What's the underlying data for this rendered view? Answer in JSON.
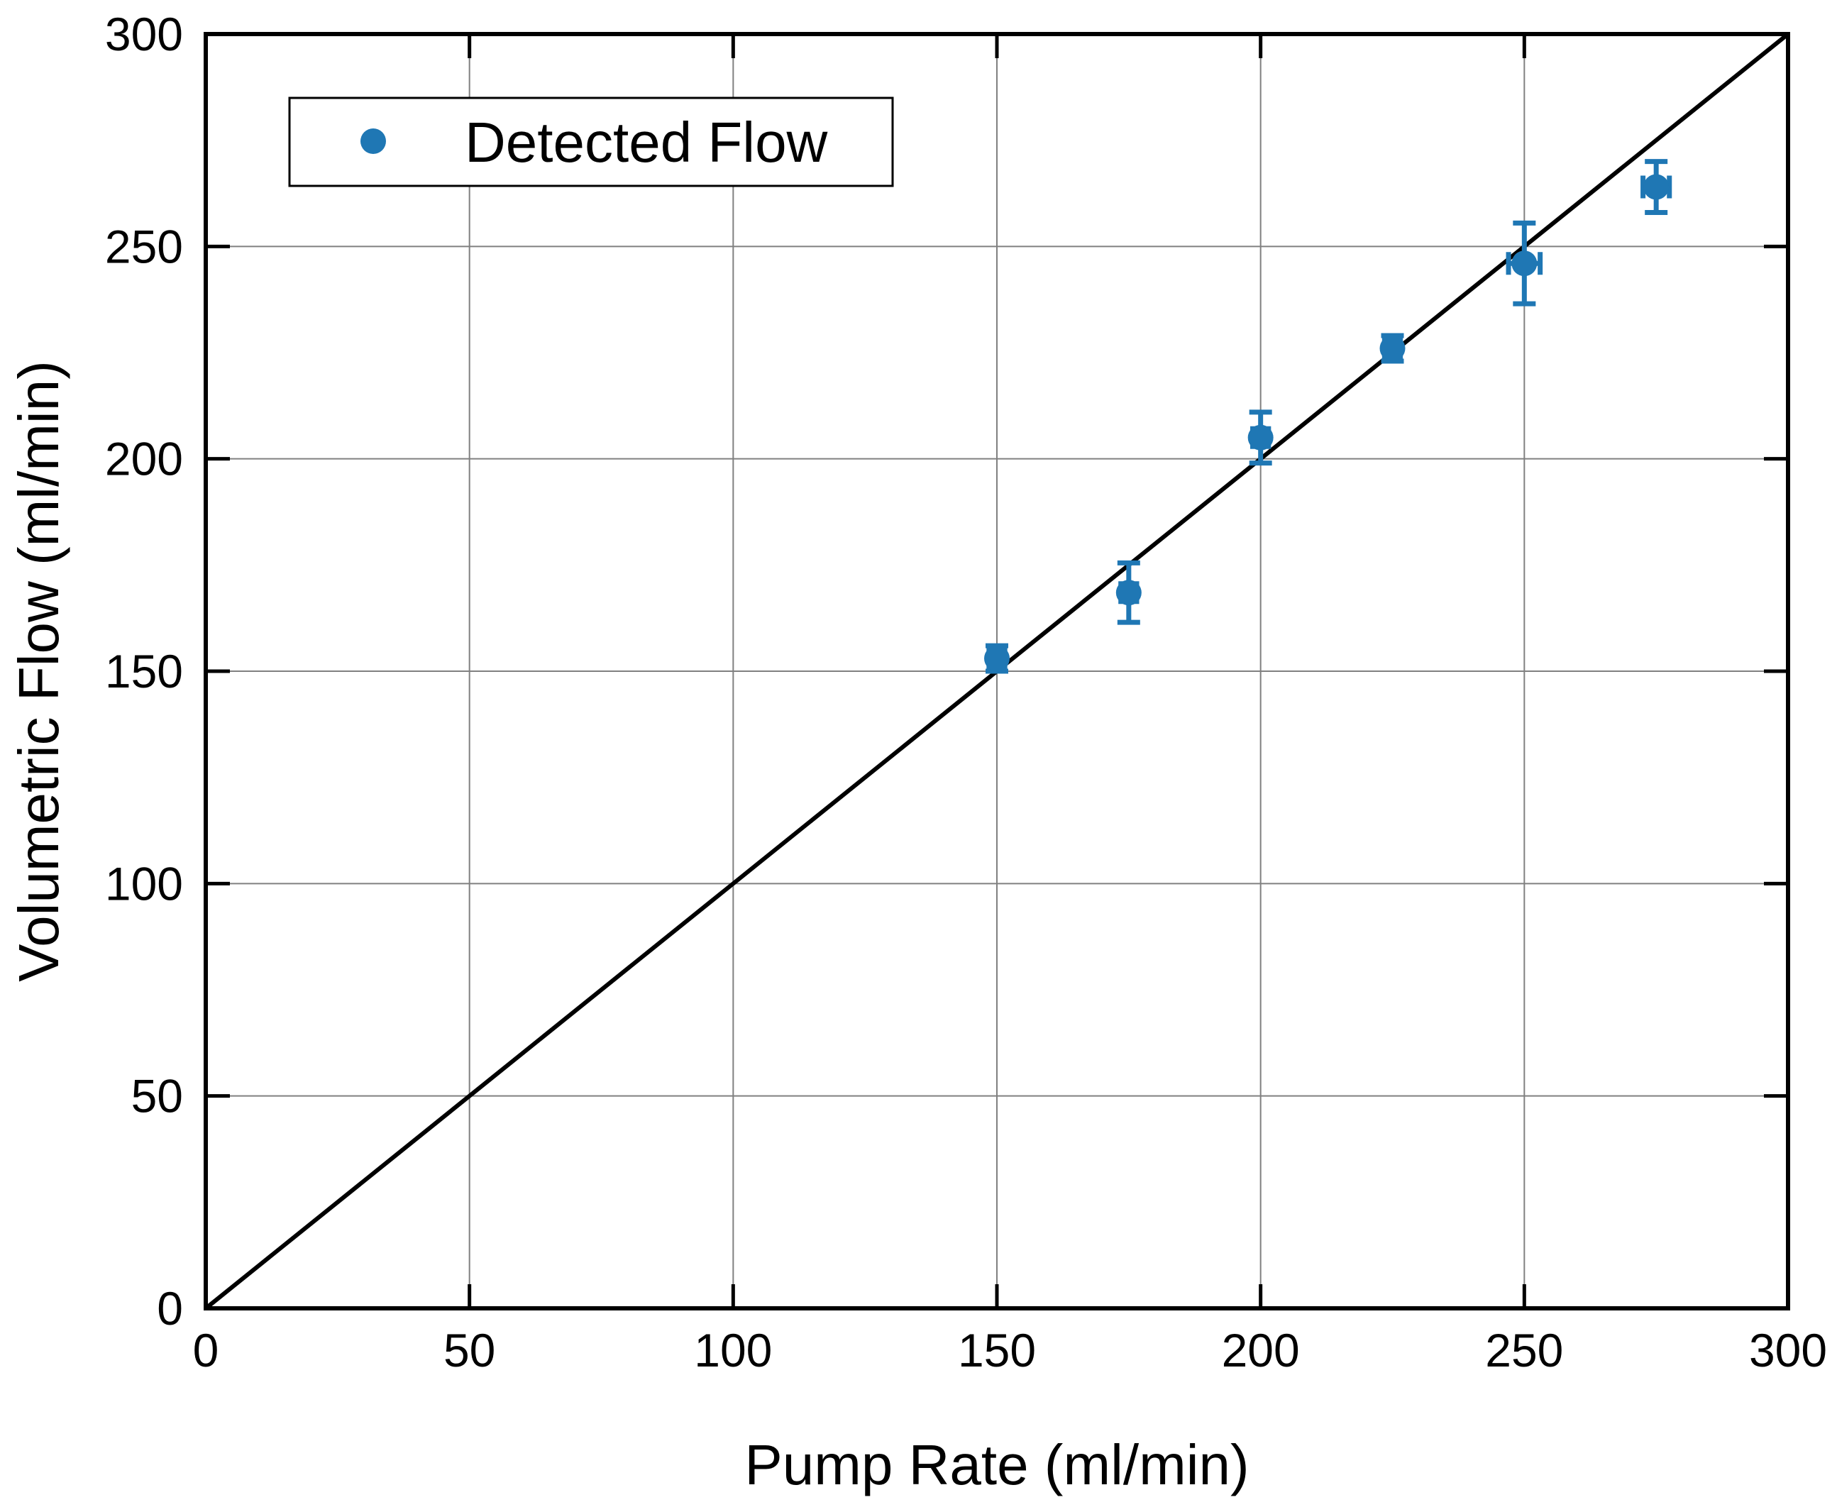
{
  "chart_data": {
    "type": "scatter",
    "xlabel": "Pump Rate (ml/min)",
    "ylabel": "Volumetric Flow (ml/min)",
    "xlim": [
      0,
      300
    ],
    "ylim": [
      0,
      300
    ],
    "xticks": [
      "0",
      "50",
      "100",
      "150",
      "200",
      "250",
      "300"
    ],
    "yticks": [
      "0",
      "50",
      "100",
      "150",
      "200",
      "250",
      "300"
    ],
    "grid": true,
    "legend": {
      "position": "top-left",
      "entries": [
        "Detected Flow"
      ]
    },
    "series": [
      {
        "name": "Detected Flow",
        "color": "#1f77b4",
        "marker": "circle",
        "points": [
          {
            "x": 150,
            "y": 153,
            "yerr": 3,
            "xerr": 1.5
          },
          {
            "x": 175,
            "y": 168.5,
            "yerr": 7,
            "xerr": 1.5
          },
          {
            "x": 200,
            "y": 205,
            "yerr": 6,
            "xerr": 1.5
          },
          {
            "x": 225,
            "y": 226,
            "yerr": 3,
            "xerr": 1.5
          },
          {
            "x": 250,
            "y": 246,
            "yerr": 9.5,
            "xerr": 3
          },
          {
            "x": 275,
            "y": 264,
            "yerr": 6,
            "xerr": 2.5
          }
        ]
      }
    ],
    "reference_line": {
      "x": [
        0,
        300
      ],
      "y": [
        0,
        300
      ],
      "color": "#000000"
    }
  }
}
